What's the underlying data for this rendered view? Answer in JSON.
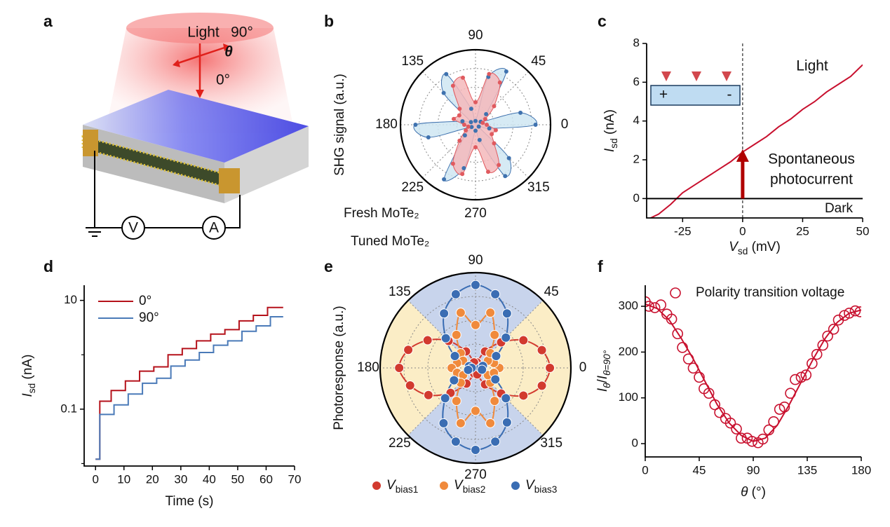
{
  "panel_labels": [
    "a",
    "b",
    "c",
    "d",
    "e",
    "f"
  ],
  "schematic": {
    "light": "Light",
    "angle_90": "90°",
    "theta": "θ",
    "angle_0": "0°",
    "voltmeter": "V",
    "ammeter": "A"
  },
  "chart_data": [
    {
      "type": "polar",
      "ylabel": "SHG signal (a.u.)",
      "thetaticks": [
        0,
        45,
        90,
        135,
        180,
        225,
        270,
        315
      ],
      "rlim": [
        0,
        1
      ],
      "rgrid": [
        0.25,
        0.5,
        0.75
      ],
      "theta": [
        0,
        15,
        30,
        45,
        60,
        75,
        90,
        105,
        120,
        135,
        150,
        165,
        180,
        195,
        210,
        225,
        240,
        255,
        270,
        285,
        300,
        315,
        330,
        345
      ],
      "series": [
        {
          "name": "Fresh MoTe₂",
          "color": "#3f72af",
          "fill": "#cfe6f2",
          "values": [
            0.8,
            0.62,
            0.08,
            0.2,
            0.82,
            0.66,
            0.05,
            0.22,
            0.78,
            0.6,
            0.07,
            0.18,
            0.8,
            0.65,
            0.06,
            0.2,
            0.84,
            0.6,
            0.08,
            0.21,
            0.79,
            0.63,
            0.05,
            0.19
          ]
        },
        {
          "name": "Tuned MoTe₂",
          "color": "#e05a5f",
          "fill": "#f4b8bb",
          "values": [
            0.15,
            0.1,
            0.15,
            0.35,
            0.65,
            0.7,
            0.3,
            0.65,
            0.6,
            0.3,
            0.25,
            0.3,
            0.15,
            0.1,
            0.15,
            0.3,
            0.6,
            0.68,
            0.3,
            0.65,
            0.62,
            0.35,
            0.25,
            0.28
          ]
        }
      ]
    },
    {
      "type": "line",
      "xlabel": [
        "V",
        "sd",
        " (mV)"
      ],
      "ylabel": [
        "I",
        "sd",
        " (nA)"
      ],
      "xlim": [
        -40,
        50
      ],
      "xticks": [
        -25,
        0,
        25,
        50
      ],
      "ylim": [
        -1,
        8
      ],
      "yticks": [
        0,
        2,
        4,
        6,
        8
      ],
      "marker_x": 0,
      "series": [
        {
          "name": "Light",
          "color": "#c8102e",
          "x": [
            -40,
            -35,
            -30,
            -25,
            -20,
            -15,
            -10,
            -5,
            0,
            5,
            10,
            15,
            20,
            25,
            30,
            35,
            40,
            45,
            50
          ],
          "values": [
            -1.1,
            -0.8,
            -0.3,
            0.3,
            0.7,
            1.1,
            1.5,
            1.9,
            2.4,
            2.8,
            3.2,
            3.7,
            4.1,
            4.6,
            5.0,
            5.5,
            5.9,
            6.3,
            6.9
          ]
        },
        {
          "name": "Dark",
          "color": "#000000",
          "x": [
            -40,
            50
          ],
          "values": [
            0,
            0
          ]
        }
      ],
      "annotation": [
        "Spontaneous",
        "photocurrent"
      ],
      "inset": [
        "+",
        "-"
      ]
    },
    {
      "type": "step",
      "xlabel": "Time (s)",
      "ylabel": [
        "I",
        "sd",
        " (nA)"
      ],
      "xlim": [
        -4,
        70
      ],
      "xticks": [
        0,
        10,
        20,
        30,
        40,
        50,
        60,
        70
      ],
      "log": true,
      "ylim": [
        0.009,
        19
      ],
      "yticks": [
        0.1,
        10
      ],
      "yminor": [
        0.01,
        1
      ],
      "series": [
        {
          "name": "0°",
          "color": "#b5121b",
          "x": [
            0,
            1.5,
            5.5,
            10.5,
            15.5,
            20.5,
            25.5,
            30.5,
            35.5,
            40.5,
            45.5,
            50.5,
            55.5,
            60.5,
            66
          ],
          "values": [
            0.012,
            0.14,
            0.22,
            0.33,
            0.5,
            0.6,
            1.0,
            1.3,
            1.8,
            2.4,
            2.9,
            4.2,
            5.3,
            7.4,
            7.4
          ]
        },
        {
          "name": "90°",
          "color": "#4a7ab8",
          "x": [
            0,
            1.5,
            6.5,
            11.5,
            16.5,
            21.5,
            26.5,
            31.5,
            36.5,
            41.5,
            46.5,
            51.5,
            56.5,
            61.5,
            66
          ],
          "values": [
            0.012,
            0.08,
            0.12,
            0.19,
            0.3,
            0.37,
            0.62,
            0.8,
            1.1,
            1.5,
            1.8,
            2.7,
            3.4,
            5.0,
            5.0
          ]
        }
      ]
    },
    {
      "type": "polar",
      "ylabel": "Photoresponse (a.u.)",
      "thetaticks": [
        0,
        45,
        90,
        135,
        180,
        225,
        270,
        315
      ],
      "rlim": [
        0,
        1
      ],
      "rgrid": [
        0.25,
        0.5,
        0.75
      ],
      "sectors": [
        {
          "from": 45,
          "to": 135,
          "color": "#c8d4ec"
        },
        {
          "from": 135,
          "to": 225,
          "color": "#fbedc6"
        },
        {
          "from": 225,
          "to": 315,
          "color": "#c8d4ec"
        },
        {
          "from": 315,
          "to": 405,
          "color": "#fbedc6"
        }
      ],
      "theta": [
        0,
        15,
        30,
        45,
        60,
        75,
        90,
        105,
        120,
        135,
        150,
        165,
        180,
        195,
        210,
        225,
        240,
        255,
        270,
        285,
        300,
        315,
        330,
        345
      ],
      "series": [
        {
          "name": [
            "V",
            "bias1"
          ],
          "color": "#d23a2f",
          "values": [
            0.78,
            0.72,
            0.58,
            0.38,
            0.2,
            0.06,
            0.03,
            0.06,
            0.2,
            0.4,
            0.58,
            0.73,
            0.8,
            0.71,
            0.57,
            0.37,
            0.19,
            0.06,
            0.03,
            0.07,
            0.2,
            0.38,
            0.58,
            0.72
          ]
        },
        {
          "name": [
            "V",
            "bias2"
          ],
          "color": "#f08a3c",
          "values": [
            0.25,
            0.2,
            0.15,
            0.22,
            0.4,
            0.6,
            0.45,
            0.6,
            0.4,
            0.22,
            0.15,
            0.2,
            0.25,
            0.2,
            0.15,
            0.22,
            0.4,
            0.6,
            0.45,
            0.6,
            0.4,
            0.22,
            0.15,
            0.2
          ]
        },
        {
          "name": [
            "V",
            "bias3"
          ],
          "color": "#3a6db3",
          "values": [
            0.05,
            0.08,
            0.25,
            0.45,
            0.66,
            0.8,
            0.87,
            0.8,
            0.66,
            0.44,
            0.25,
            0.07,
            0.04,
            0.08,
            0.26,
            0.45,
            0.67,
            0.8,
            0.86,
            0.8,
            0.66,
            0.45,
            0.24,
            0.07
          ]
        }
      ]
    },
    {
      "type": "scatter",
      "xlabel": [
        "θ",
        " (°)"
      ],
      "ylabel": [
        "I",
        "θ",
        "/",
        "I",
        "θ=90°"
      ],
      "xlim": [
        0,
        180
      ],
      "xticks": [
        0,
        45,
        90,
        135,
        180
      ],
      "ylim": [
        -29,
        346
      ],
      "yticks": [
        0,
        100,
        200,
        300
      ],
      "series": [
        {
          "name": "Polarity transition voltage",
          "color": "#c8102e",
          "x": [
            0,
            3,
            8,
            13,
            18,
            22,
            27,
            31,
            36,
            40,
            45,
            49,
            53,
            58,
            62,
            67,
            71,
            76,
            80,
            85,
            89,
            94,
            98,
            103,
            107,
            112,
            116,
            121,
            125,
            130,
            134,
            139,
            143,
            148,
            152,
            157,
            161,
            166,
            170,
            175,
            179
          ],
          "values": [
            310,
            300,
            297,
            303,
            283,
            272,
            240,
            210,
            185,
            165,
            145,
            120,
            110,
            85,
            68,
            55,
            45,
            32,
            12,
            12,
            5,
            2,
            10,
            30,
            48,
            75,
            80,
            110,
            140,
            145,
            150,
            175,
            195,
            215,
            235,
            250,
            270,
            280,
            285,
            290,
            288
          ]
        }
      ],
      "fit": {
        "color": "#c8102e",
        "x": [
          0,
          10,
          20,
          30,
          40,
          50,
          60,
          70,
          80,
          90,
          100,
          110,
          120,
          130,
          140,
          150,
          160,
          170,
          180
        ],
        "values": [
          305,
          295,
          270,
          230,
          185,
          135,
          85,
          45,
          18,
          5,
          12,
          40,
          85,
          135,
          185,
          230,
          265,
          285,
          292
        ]
      }
    }
  ]
}
